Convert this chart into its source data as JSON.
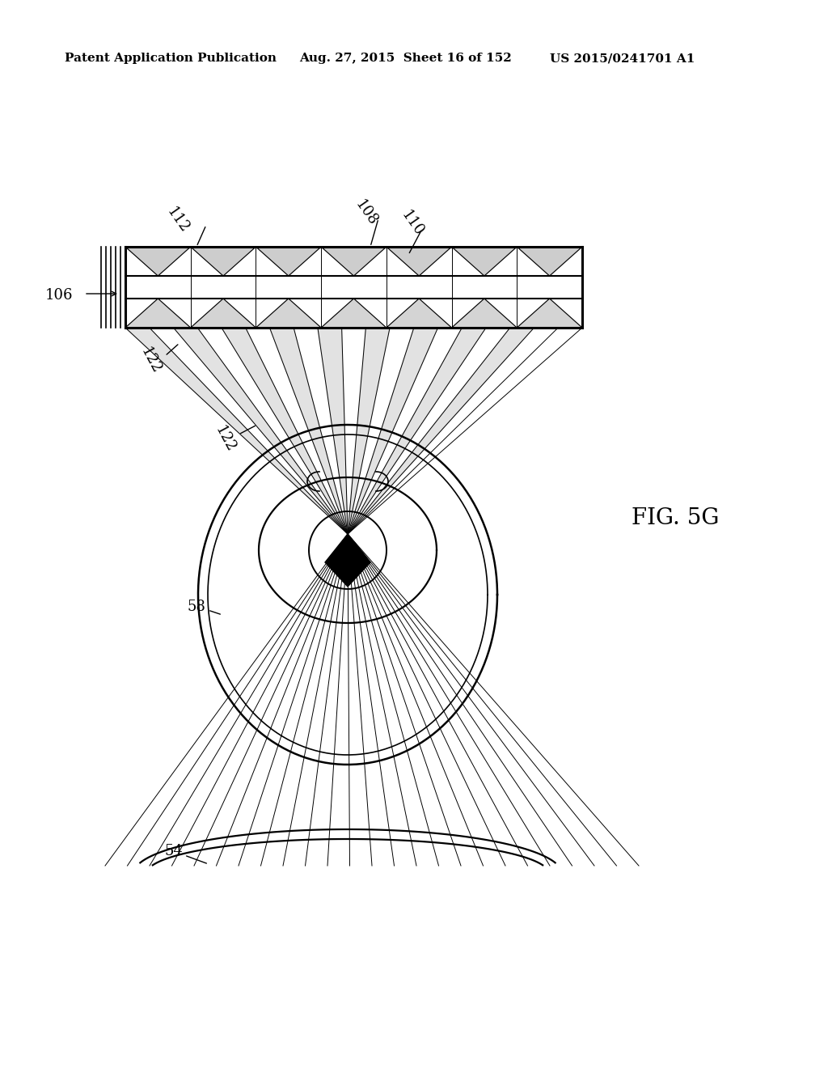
{
  "header_left": "Patent Application Publication",
  "header_mid": "Aug. 27, 2015  Sheet 16 of 152",
  "header_right": "US 2015/0241701 A1",
  "fig_label": "FIG. 5G",
  "label_106": "106",
  "label_108": "108",
  "label_110": "110",
  "label_112": "112",
  "label_122a": "122",
  "label_122b": "122",
  "label_58": "58",
  "label_54": "54",
  "bg_color": "#ffffff",
  "line_color": "#000000",
  "gray_fill": "#b8b8b8"
}
